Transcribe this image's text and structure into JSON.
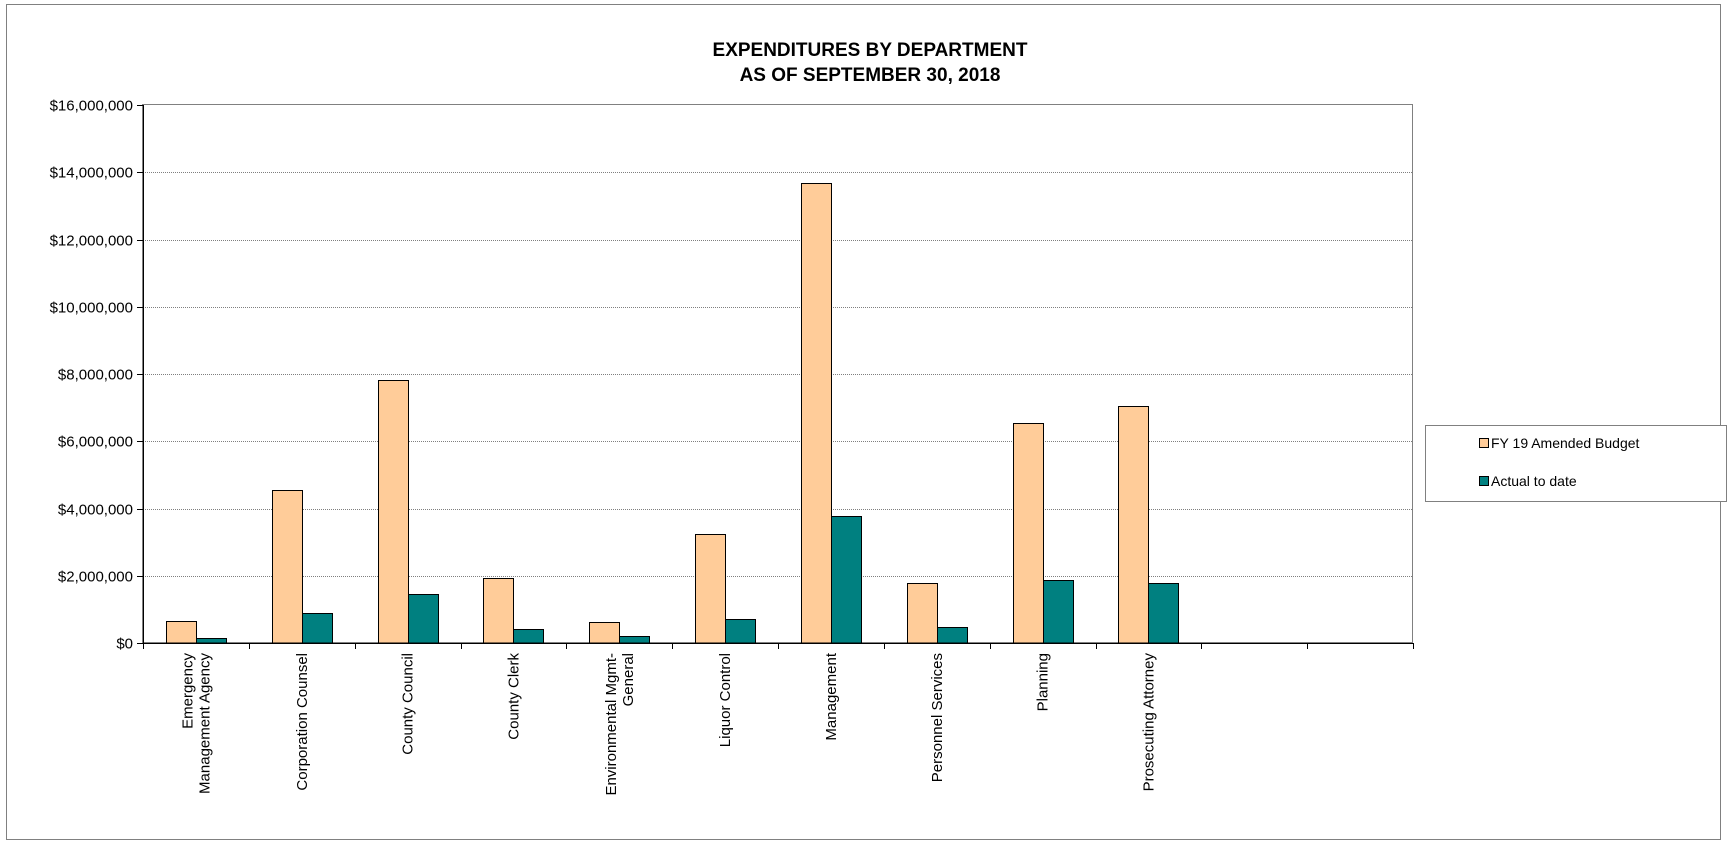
{
  "chart_data": {
    "type": "bar",
    "title": "EXPENDITURES BY DEPARTMENT",
    "subtitle": "AS OF SEPTEMBER 30, 2018",
    "xlabel": "",
    "ylabel": "",
    "ylim": [
      0,
      16000000
    ],
    "y_ticks": [
      {
        "value": 0,
        "label": "$0"
      },
      {
        "value": 2000000,
        "label": "$2,000,000"
      },
      {
        "value": 4000000,
        "label": "$4,000,000"
      },
      {
        "value": 6000000,
        "label": "$6,000,000"
      },
      {
        "value": 8000000,
        "label": "$8,000,000"
      },
      {
        "value": 10000000,
        "label": "$10,000,000"
      },
      {
        "value": 12000000,
        "label": "$12,000,000"
      },
      {
        "value": 14000000,
        "label": "$14,000,000"
      },
      {
        "value": 16000000,
        "label": "$16,000,000"
      }
    ],
    "grid": true,
    "legend_position": "right",
    "categories": [
      [
        "Emergency",
        "Management Agency"
      ],
      [
        "Corporation Counsel"
      ],
      [
        "County Council"
      ],
      [
        "County Clerk"
      ],
      [
        "Environmental Mgmt-",
        "General"
      ],
      [
        "Liquor Control"
      ],
      [
        "Management"
      ],
      [
        "Personnel Services"
      ],
      [
        "Planning"
      ],
      [
        "Prosecuting Attorney"
      ],
      [
        ""
      ],
      [
        ""
      ]
    ],
    "series": [
      {
        "name": "FY 19 Amended Budget",
        "color": "#ffcc99",
        "values": [
          640000,
          4540000,
          7820000,
          1930000,
          630000,
          3240000,
          13680000,
          1790000,
          6550000,
          7050000,
          null,
          null
        ]
      },
      {
        "name": "Actual to date",
        "color": "#008080",
        "values": [
          150000,
          890000,
          1450000,
          410000,
          220000,
          710000,
          3780000,
          490000,
          1870000,
          1780000,
          null,
          null
        ]
      }
    ]
  }
}
